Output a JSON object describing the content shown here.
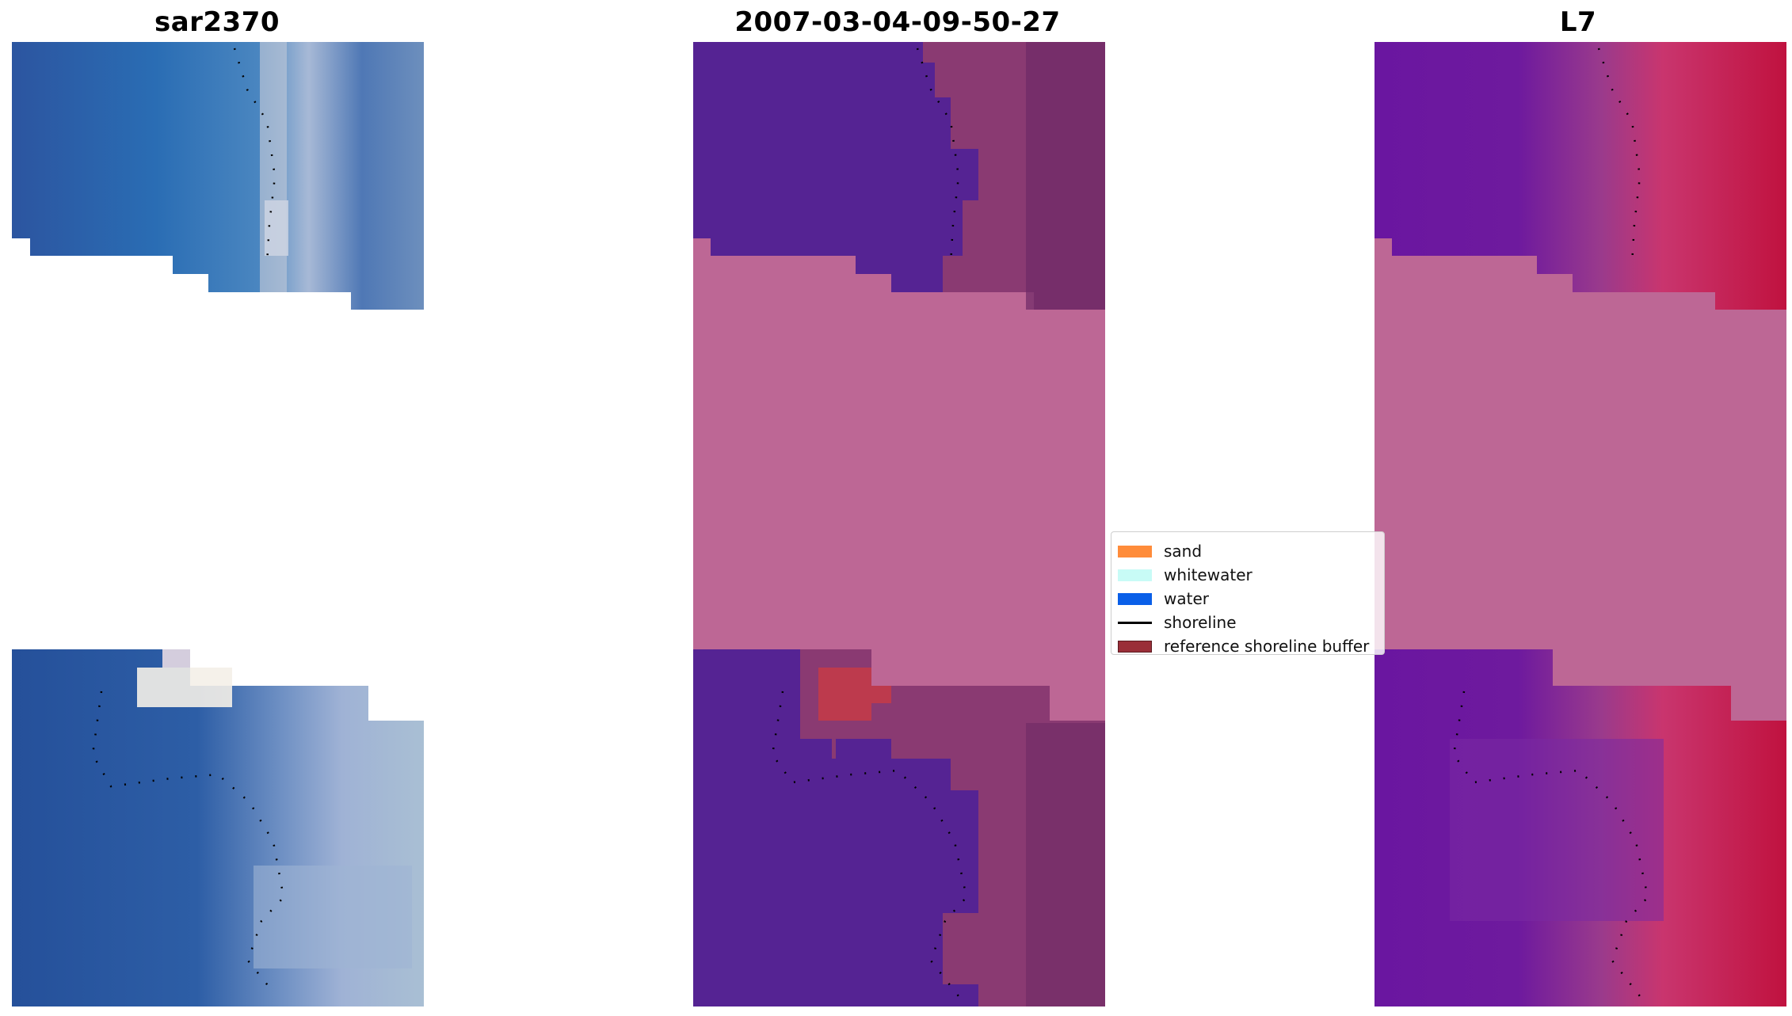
{
  "panels": [
    {
      "title": "sar2370"
    },
    {
      "title": "2007-03-04-09-50-27"
    },
    {
      "title": "L7"
    }
  ],
  "legend": {
    "items": [
      {
        "label": "sand",
        "color": "#ff8c3a",
        "kind": "patch"
      },
      {
        "label": "whitewater",
        "color": "#c8fbf6",
        "kind": "patch"
      },
      {
        "label": "water",
        "color": "#0a5fe8",
        "kind": "patch"
      },
      {
        "label": "shoreline",
        "color": "#000000",
        "kind": "line"
      },
      {
        "label": "reference shoreline buffer",
        "color": "#9a2e38",
        "kind": "patch"
      }
    ]
  },
  "colors": {
    "nodata_pink": "#bd6795",
    "water_purple": "#552393",
    "rgb_water": "#2a5fa5",
    "ndwi_high": "#c0123f"
  }
}
